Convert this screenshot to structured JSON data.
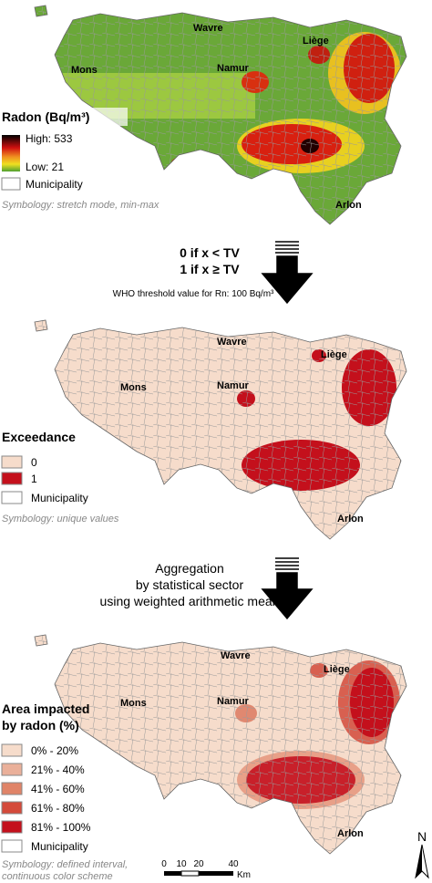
{
  "panels": [
    {
      "cities": [
        "Wavre",
        "Liège",
        "Mons",
        "Namur",
        "Arlon"
      ],
      "legend": {
        "title": [
          "Radon (Bq/m³)"
        ],
        "items": [
          "High: 533",
          "Low: 21",
          "Municipality"
        ]
      },
      "note": [
        "Symbology: stretch mode, min-max"
      ]
    },
    {
      "cities": [
        "Wavre",
        "Liège",
        "Mons",
        "Namur",
        "Arlon"
      ],
      "legend": {
        "title": [
          "Exceedance"
        ],
        "items": [
          "0",
          "1",
          "Municipality"
        ]
      },
      "note": [
        "Symbology: unique values"
      ]
    },
    {
      "cities": [
        "Wavre",
        "Liège",
        "Mons",
        "Namur",
        "Arlon"
      ],
      "legend": {
        "title": [
          "Area impacted",
          "by radon (%)"
        ],
        "items": [
          "0% - 20%",
          "21% - 40%",
          "41% - 60%",
          "61% - 80%",
          "81% - 100%",
          "Municipality"
        ]
      },
      "note": [
        "Symbology: defined interval,",
        "continuous color scheme"
      ]
    }
  ],
  "steps": [
    {
      "lines": [
        "0 if x < TV",
        "1 if x ≥ TV"
      ],
      "note": "WHO threshold value for Rn: 100 Bq/m³"
    },
    {
      "lines": [
        "Aggregation",
        "by statistical sector",
        "using weighted arithmetic mean"
      ]
    }
  ],
  "scale_bar": {
    "labels": [
      "0",
      "10",
      "20",
      "40"
    ],
    "unit": "Km"
  },
  "north": "N"
}
